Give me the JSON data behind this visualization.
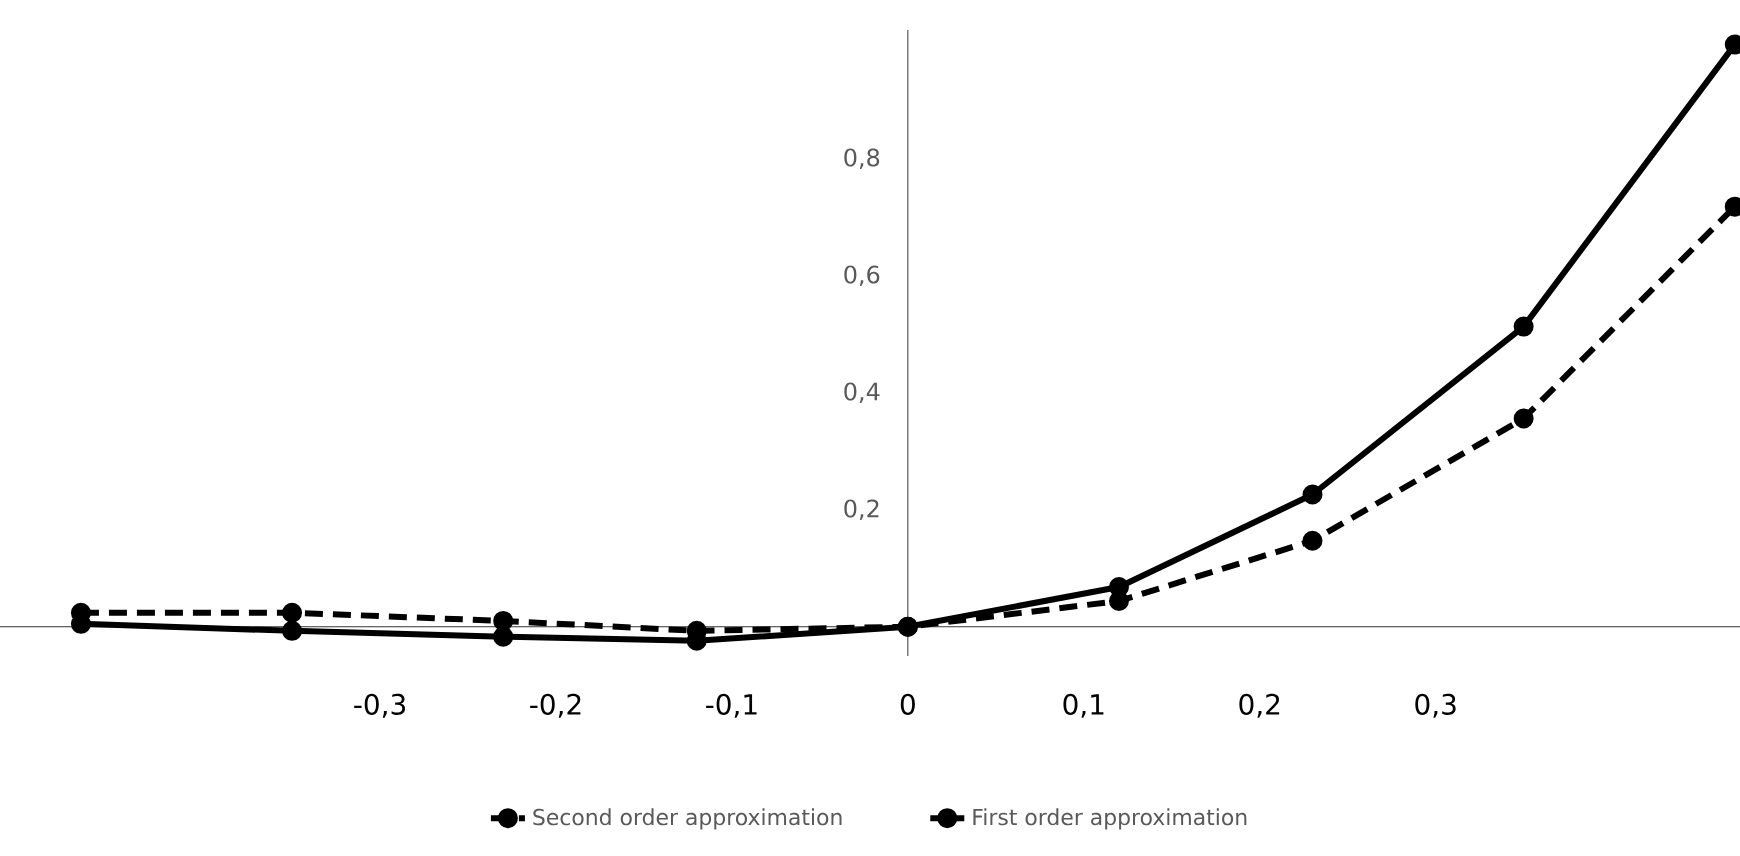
{
  "chart_data": {
    "type": "line",
    "marker": "circle",
    "legend": "bottom",
    "grid": false,
    "xlim": [
      -0.516,
      0.473
    ],
    "ylim": [
      -0.05,
      1.02
    ],
    "xticks": [
      {
        "value": -0.3,
        "label": "-0,3"
      },
      {
        "value": -0.2,
        "label": "-0,2"
      },
      {
        "value": -0.1,
        "label": "-0,1"
      },
      {
        "value": 0,
        "label": "0"
      },
      {
        "value": 0.1,
        "label": "0,1"
      },
      {
        "value": 0.2,
        "label": "0,2"
      },
      {
        "value": 0.3,
        "label": "0,3"
      }
    ],
    "yticks": [
      {
        "value": 0.2,
        "label": "0,2"
      },
      {
        "value": 0.4,
        "label": "0,4"
      },
      {
        "value": 0.6,
        "label": "0,6"
      },
      {
        "value": 0.8,
        "label": "0,8"
      }
    ],
    "x": [
      -0.47,
      -0.35,
      -0.23,
      -0.12,
      0,
      0.12,
      0.23,
      0.35,
      0.47
    ],
    "series": [
      {
        "name": "Second order approximation",
        "color": "#000000",
        "line_style": "dashed",
        "values": [
          0.024,
          0.024,
          0.01,
          -0.007,
          0,
          0.044,
          0.147,
          0.356,
          0.718
        ]
      },
      {
        "name": "First order approximation",
        "color": "#000000",
        "line_style": "solid",
        "values": [
          0.005,
          -0.007,
          -0.017,
          -0.024,
          0,
          0.068,
          0.226,
          0.513,
          0.995
        ]
      }
    ]
  }
}
